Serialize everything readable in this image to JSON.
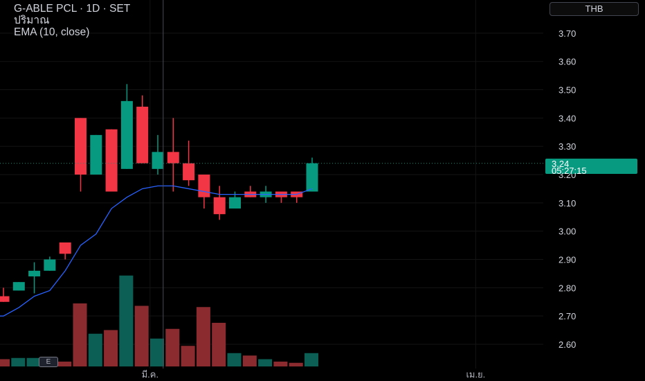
{
  "header": {
    "title": "G-ABLE PCL · 1D · SET",
    "volume_label": "ปริมาณ",
    "indicator_label": "EMA (10, close)"
  },
  "currency_button": "THB",
  "last_price": {
    "value": "3.24",
    "countdown": "05:27:15",
    "color": "#089981"
  },
  "event_badge": "E",
  "colors": {
    "up": "#089981",
    "down": "#f23645",
    "up_volume": "#0b5f55",
    "down_volume": "#8c2b2f",
    "ema": "#2962ff"
  },
  "chart_data": {
    "type": "candlestick",
    "ylim": [
      2.54,
      3.78
    ],
    "yticks": [
      "2.60",
      "2.70",
      "2.80",
      "2.90",
      "3.00",
      "3.10",
      "3.20",
      "3.30",
      "3.40",
      "3.50",
      "3.60",
      "3.70"
    ],
    "xticks": [
      {
        "label": "มี.ค.",
        "index": 9.5
      },
      {
        "label": "เม.ย.",
        "index": 30.6
      }
    ],
    "grid": true,
    "candles": [
      {
        "open": 2.77,
        "high": 2.8,
        "low": 2.75,
        "close": 2.75
      },
      {
        "open": 2.79,
        "high": 2.82,
        "low": 2.79,
        "close": 2.82
      },
      {
        "open": 2.84,
        "high": 2.89,
        "low": 2.78,
        "close": 2.86
      },
      {
        "open": 2.86,
        "high": 2.91,
        "low": 2.86,
        "close": 2.9
      },
      {
        "open": 2.96,
        "high": 2.96,
        "low": 2.9,
        "close": 2.92
      },
      {
        "open": 3.4,
        "high": 3.4,
        "low": 3.14,
        "close": 3.2
      },
      {
        "open": 3.2,
        "high": 3.34,
        "low": 3.2,
        "close": 3.34
      },
      {
        "open": 3.36,
        "high": 3.36,
        "low": 3.14,
        "close": 3.14
      },
      {
        "open": 3.22,
        "high": 3.52,
        "low": 3.22,
        "close": 3.46
      },
      {
        "open": 3.44,
        "high": 3.48,
        "low": 3.24,
        "close": 3.24
      },
      {
        "open": 3.22,
        "high": 3.34,
        "low": 3.2,
        "close": 3.28
      },
      {
        "open": 3.28,
        "high": 3.4,
        "low": 3.14,
        "close": 3.24
      },
      {
        "open": 3.24,
        "high": 3.32,
        "low": 3.16,
        "close": 3.18
      },
      {
        "open": 3.2,
        "high": 3.2,
        "low": 3.08,
        "close": 3.12
      },
      {
        "open": 3.12,
        "high": 3.16,
        "low": 3.04,
        "close": 3.06
      },
      {
        "open": 3.08,
        "high": 3.14,
        "low": 3.08,
        "close": 3.12
      },
      {
        "open": 3.14,
        "high": 3.16,
        "low": 3.12,
        "close": 3.12
      },
      {
        "open": 3.12,
        "high": 3.16,
        "low": 3.1,
        "close": 3.14
      },
      {
        "open": 3.14,
        "high": 3.14,
        "low": 3.1,
        "close": 3.12
      },
      {
        "open": 3.14,
        "high": 3.14,
        "low": 3.1,
        "close": 3.12
      },
      {
        "open": 3.14,
        "high": 3.26,
        "low": 3.14,
        "close": 3.24
      }
    ],
    "volume_relative": [
      0.06,
      0.07,
      0.07,
      0.04,
      0.04,
      0.52,
      0.27,
      0.3,
      0.75,
      0.5,
      0.23,
      0.31,
      0.17,
      0.49,
      0.36,
      0.11,
      0.09,
      0.06,
      0.04,
      0.03,
      0.11
    ],
    "ema": {
      "name": "EMA (10, close)",
      "values": [
        2.7,
        2.73,
        2.77,
        2.79,
        2.86,
        2.95,
        2.99,
        3.08,
        3.12,
        3.15,
        3.16,
        3.16,
        3.15,
        3.14,
        3.13,
        3.13,
        3.13,
        3.13,
        3.13,
        3.13,
        3.15
      ]
    }
  }
}
